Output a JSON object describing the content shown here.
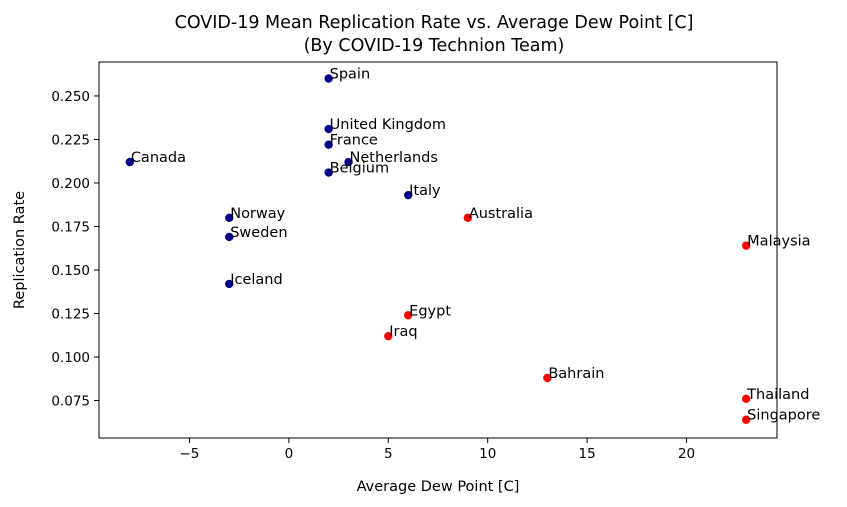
{
  "chart_data": {
    "type": "scatter",
    "title": "COVID-19 Mean Replication Rate vs. Average Dew Point [C]",
    "subtitle": "(By COVID-19 Technion Team)",
    "xlabel": "Average Dew Point [C]",
    "ylabel": "Replication Rate",
    "xlim": [
      -9.55,
      24.55
    ],
    "ylim": [
      0.0535,
      0.2695
    ],
    "xticks": [
      -5,
      0,
      5,
      10,
      15,
      20
    ],
    "yticks": [
      0.075,
      0.1,
      0.125,
      0.15,
      0.175,
      0.2,
      0.225,
      0.25
    ],
    "xtick_labels": [
      "−5",
      "0",
      "5",
      "10",
      "15",
      "20"
    ],
    "ytick_labels": [
      "0.075",
      "0.100",
      "0.125",
      "0.150",
      "0.175",
      "0.200",
      "0.225",
      "0.250"
    ],
    "grid": false,
    "colors": {
      "group_a": "#00008b",
      "group_b": "#ff0000"
    },
    "points": [
      {
        "label": "Spain",
        "x": 2,
        "y": 0.26,
        "color": "#00008b"
      },
      {
        "label": "United Kingdom",
        "x": 2,
        "y": 0.231,
        "color": "#00008b"
      },
      {
        "label": "France",
        "x": 2,
        "y": 0.222,
        "color": "#00008b"
      },
      {
        "label": "Netherlands",
        "x": 3,
        "y": 0.212,
        "color": "#00008b"
      },
      {
        "label": "Belgium",
        "x": 2,
        "y": 0.206,
        "color": "#00008b"
      },
      {
        "label": "Canada",
        "x": -8,
        "y": 0.212,
        "color": "#00008b"
      },
      {
        "label": "Italy",
        "x": 6,
        "y": 0.193,
        "color": "#00008b"
      },
      {
        "label": "Norway",
        "x": -3,
        "y": 0.18,
        "color": "#00008b"
      },
      {
        "label": "Sweden",
        "x": -3,
        "y": 0.169,
        "color": "#00008b"
      },
      {
        "label": "Iceland",
        "x": -3,
        "y": 0.142,
        "color": "#00008b"
      },
      {
        "label": "Australia",
        "x": 9,
        "y": 0.18,
        "color": "#ff0000"
      },
      {
        "label": "Malaysia",
        "x": 23,
        "y": 0.164,
        "color": "#ff0000"
      },
      {
        "label": "Egypt",
        "x": 6,
        "y": 0.124,
        "color": "#ff0000"
      },
      {
        "label": "Iraq",
        "x": 5,
        "y": 0.112,
        "color": "#ff0000"
      },
      {
        "label": "Bahrain",
        "x": 13,
        "y": 0.088,
        "color": "#ff0000"
      },
      {
        "label": "Thailand",
        "x": 23,
        "y": 0.076,
        "color": "#ff0000"
      },
      {
        "label": "Singapore",
        "x": 23,
        "y": 0.064,
        "color": "#ff0000"
      }
    ]
  }
}
